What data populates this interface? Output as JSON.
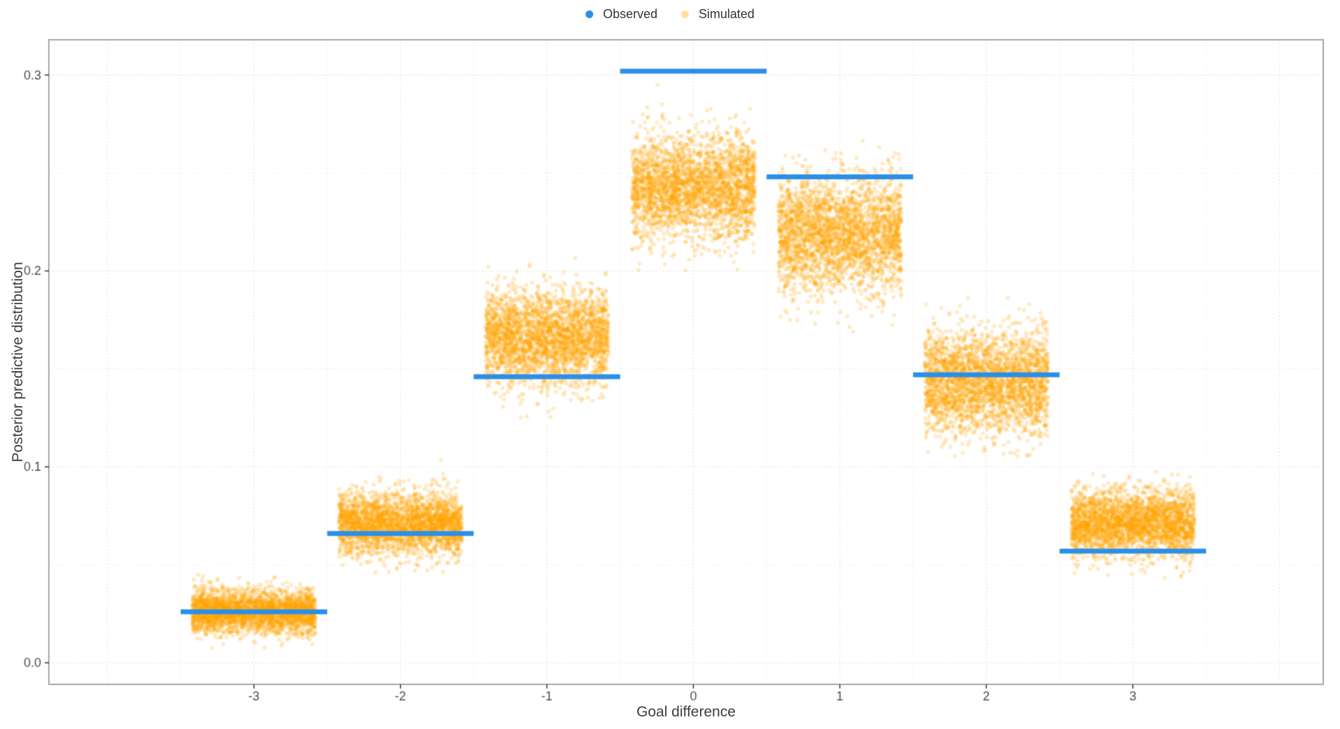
{
  "chart_data": {
    "type": "scatter",
    "title": "",
    "xlabel": "Goal difference",
    "ylabel": "Posterior predictive distribution",
    "x_ticks": [
      {
        "value": -3,
        "label": "-3"
      },
      {
        "value": -2,
        "label": "-2"
      },
      {
        "value": -1,
        "label": "-1"
      },
      {
        "value": 0,
        "label": "0"
      },
      {
        "value": 1,
        "label": "1"
      },
      {
        "value": 2,
        "label": "2"
      },
      {
        "value": 3,
        "label": "3"
      }
    ],
    "y_ticks": [
      {
        "value": 0.0,
        "label": "0.0"
      },
      {
        "value": 0.1,
        "label": "0.1"
      },
      {
        "value": 0.2,
        "label": "0.2"
      },
      {
        "value": 0.3,
        "label": "0.3"
      }
    ],
    "xlim": [
      -4.4,
      4.3
    ],
    "ylim": [
      -0.011,
      0.318
    ],
    "grid": {
      "major": true,
      "minor": true,
      "minor_x_step": 0.5,
      "minor_y_step": 0.05
    },
    "legend": {
      "position": "top-center",
      "entries": [
        {
          "label": "Observed",
          "color": "#2B8FE8",
          "alpha": 1.0
        },
        {
          "label": "Simulated",
          "color": "#FFA500",
          "alpha": 0.35
        }
      ]
    },
    "series": [
      {
        "name": "Observed",
        "geom": "horizontal-segment",
        "color": "#2B8FE8",
        "segment_halfwidth": 0.5,
        "line_thickness": 7,
        "points": [
          {
            "x": -3,
            "y": 0.026
          },
          {
            "x": -2,
            "y": 0.066
          },
          {
            "x": -1,
            "y": 0.146
          },
          {
            "x": 0,
            "y": 0.302
          },
          {
            "x": 1,
            "y": 0.248
          },
          {
            "x": 2,
            "y": 0.147
          },
          {
            "x": 3,
            "y": 0.057
          }
        ]
      },
      {
        "name": "Simulated",
        "geom": "jittered-point-cloud",
        "color": "#FFA500",
        "point_alpha": 0.22,
        "point_radius": 3,
        "jitter_halfwidth": 0.42,
        "points_per_group": 2800,
        "groups": [
          {
            "x": -3,
            "mean": 0.026,
            "sd": 0.0055,
            "min": 0.006,
            "max": 0.047
          },
          {
            "x": -2,
            "mean": 0.071,
            "sd": 0.008,
            "min": 0.046,
            "max": 0.104
          },
          {
            "x": -1,
            "mean": 0.166,
            "sd": 0.012,
            "min": 0.118,
            "max": 0.212
          },
          {
            "x": 0,
            "mean": 0.243,
            "sd": 0.013,
            "min": 0.198,
            "max": 0.298
          },
          {
            "x": 1,
            "mean": 0.219,
            "sd": 0.0145,
            "min": 0.165,
            "max": 0.272
          },
          {
            "x": 2,
            "mean": 0.143,
            "sd": 0.013,
            "min": 0.104,
            "max": 0.19
          },
          {
            "x": 3,
            "mean": 0.071,
            "sd": 0.0085,
            "min": 0.042,
            "max": 0.1
          }
        ]
      }
    ],
    "colors": {
      "panel_border": "#A6A6A6",
      "tick_mark": "#333333",
      "tick_label": "#4d4d4d",
      "grid_major": "#e8e6df",
      "grid_minor": "#f3f1ea",
      "background": "#ffffff"
    }
  }
}
